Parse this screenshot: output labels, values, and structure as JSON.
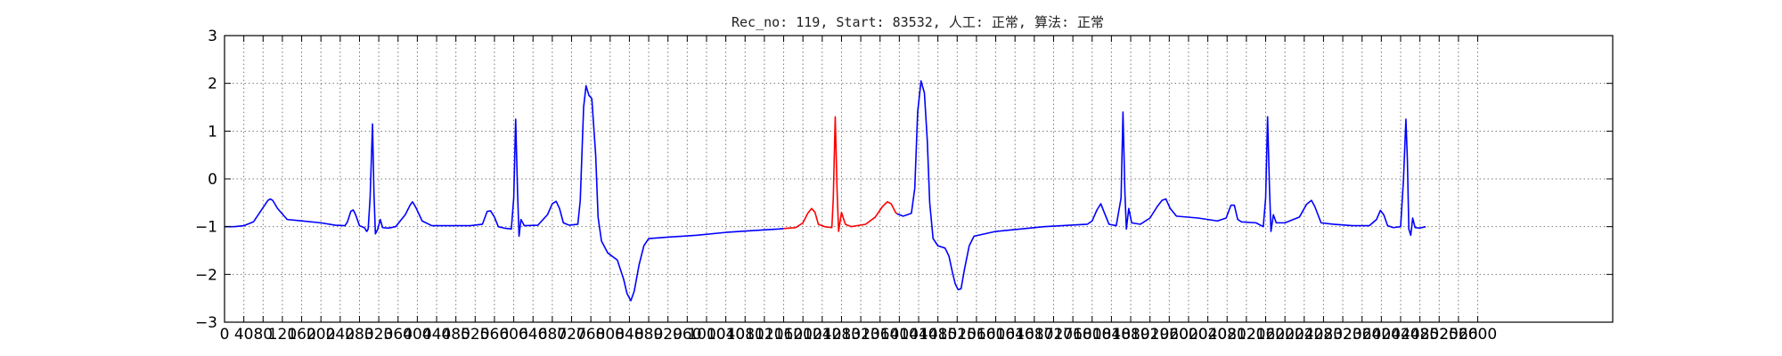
{
  "chart_data": {
    "type": "line",
    "title": "Rec_no: 119, Start: 83532, 人工: 正常, 算法: 正常",
    "xlabel": "",
    "ylabel": "",
    "xlim": [
      0,
      2880
    ],
    "ylim": [
      -3,
      3
    ],
    "grid": true,
    "legend": "none",
    "xticks": [
      0,
      40,
      80,
      120,
      160,
      200,
      240,
      280,
      320,
      360,
      400,
      440,
      480,
      520,
      560,
      600,
      640,
      680,
      720,
      760,
      800,
      840,
      880,
      920,
      960,
      1000,
      1040,
      1080,
      1120,
      1160,
      1200,
      1240,
      1280,
      1320,
      1360,
      1400,
      1440,
      1480,
      1520,
      1560,
      1600,
      1640,
      1680,
      1720,
      1760,
      1800,
      1840,
      1880,
      1920,
      1960,
      2000,
      2040,
      2080,
      2120,
      2160,
      2200,
      2240,
      2280,
      2320,
      2360,
      2400,
      2440,
      2480,
      2520,
      2560,
      2600
    ],
    "xtick_labels": [
      "0",
      "40",
      "80",
      "120",
      "160",
      "200",
      "240",
      "280",
      "320",
      "360",
      "400",
      "440",
      "480",
      "520",
      "560",
      "600",
      "640",
      "680",
      "720",
      "760",
      "800",
      "840",
      "880",
      "920",
      "960",
      "1000",
      "1040",
      "1080",
      "1120",
      "1160",
      "1200",
      "1240",
      "1280",
      "1320",
      "1360",
      "1400",
      "1440",
      "1480",
      "1520",
      "1560",
      "1600",
      "1640",
      "1680",
      "1720",
      "1760",
      "1800",
      "1840",
      "1880",
      "1920",
      "1960",
      "2000",
      "2040",
      "2080",
      "2120",
      "2160",
      "2200",
      "2240",
      "2280",
      "2320",
      "2360",
      "2400",
      "2440",
      "2480",
      "2520",
      "2560",
      "2600"
    ],
    "yticks": [
      -3,
      -2,
      -1,
      0,
      1,
      2,
      3
    ],
    "ytick_labels": [
      "−3",
      "−2",
      "−1",
      "0",
      "1",
      "2",
      "3"
    ],
    "series": [
      {
        "color": "#0000ff",
        "points": [
          [
            0,
            -1.0
          ],
          [
            20,
            -1.0
          ],
          [
            40,
            -0.98
          ],
          [
            60,
            -0.9
          ],
          [
            80,
            -0.6
          ],
          [
            90,
            -0.45
          ],
          [
            95,
            -0.42
          ],
          [
            100,
            -0.45
          ],
          [
            110,
            -0.62
          ],
          [
            130,
            -0.85
          ],
          [
            160,
            -0.88
          ],
          [
            200,
            -0.92
          ],
          [
            230,
            -0.97
          ],
          [
            250,
            -0.98
          ],
          [
            255,
            -0.9
          ],
          [
            262,
            -0.68
          ],
          [
            267,
            -0.65
          ],
          [
            272,
            -0.75
          ],
          [
            280,
            -0.98
          ],
          [
            290,
            -1.02
          ],
          [
            295,
            -1.1
          ],
          [
            298,
            -1.05
          ],
          [
            302,
            -0.4
          ],
          [
            307,
            1.15
          ],
          [
            310,
            -0.3
          ],
          [
            313,
            -1.15
          ],
          [
            318,
            -1.05
          ],
          [
            323,
            -0.85
          ],
          [
            328,
            -1.02
          ],
          [
            340,
            -1.03
          ],
          [
            355,
            -1.0
          ],
          [
            375,
            -0.75
          ],
          [
            385,
            -0.55
          ],
          [
            390,
            -0.48
          ],
          [
            397,
            -0.6
          ],
          [
            410,
            -0.88
          ],
          [
            430,
            -0.98
          ],
          [
            470,
            -0.98
          ],
          [
            510,
            -0.98
          ],
          [
            535,
            -0.95
          ],
          [
            545,
            -0.68
          ],
          [
            552,
            -0.67
          ],
          [
            560,
            -0.8
          ],
          [
            568,
            -1.0
          ],
          [
            580,
            -1.03
          ],
          [
            595,
            -1.05
          ],
          [
            600,
            -0.4
          ],
          [
            604,
            1.25
          ],
          [
            608,
            -0.3
          ],
          [
            611,
            -1.2
          ],
          [
            615,
            -0.85
          ],
          [
            622,
            -0.98
          ],
          [
            650,
            -0.97
          ],
          [
            670,
            -0.75
          ],
          [
            680,
            -0.52
          ],
          [
            688,
            -0.47
          ],
          [
            695,
            -0.62
          ],
          [
            703,
            -0.92
          ],
          [
            715,
            -0.97
          ],
          [
            733,
            -0.95
          ],
          [
            738,
            -0.45
          ],
          [
            745,
            1.5
          ],
          [
            750,
            1.95
          ],
          [
            756,
            1.75
          ],
          [
            762,
            1.68
          ],
          [
            770,
            0.5
          ],
          [
            775,
            -0.8
          ],
          [
            782,
            -1.3
          ],
          [
            795,
            -1.55
          ],
          [
            815,
            -1.7
          ],
          [
            828,
            -2.1
          ],
          [
            835,
            -2.4
          ],
          [
            843,
            -2.55
          ],
          [
            850,
            -2.35
          ],
          [
            860,
            -1.8
          ],
          [
            870,
            -1.4
          ],
          [
            880,
            -1.25
          ],
          [
            920,
            -1.22
          ],
          [
            980,
            -1.18
          ],
          [
            1040,
            -1.12
          ],
          [
            1100,
            -1.08
          ],
          [
            1150,
            -1.05
          ],
          [
            1160,
            -1.04
          ]
        ]
      },
      {
        "color": "#ff0000",
        "points": [
          [
            1160,
            -1.04
          ],
          [
            1185,
            -1.02
          ],
          [
            1200,
            -0.92
          ],
          [
            1210,
            -0.72
          ],
          [
            1218,
            -0.62
          ],
          [
            1225,
            -0.7
          ],
          [
            1232,
            -0.95
          ],
          [
            1245,
            -1.0
          ],
          [
            1260,
            -1.02
          ],
          [
            1263,
            -0.4
          ],
          [
            1267,
            1.3
          ],
          [
            1271,
            -0.3
          ],
          [
            1274,
            -1.1
          ],
          [
            1280,
            -0.7
          ],
          [
            1288,
            -0.95
          ],
          [
            1300,
            -1.0
          ],
          [
            1330,
            -0.95
          ],
          [
            1350,
            -0.8
          ],
          [
            1365,
            -0.58
          ],
          [
            1375,
            -0.48
          ],
          [
            1383,
            -0.52
          ],
          [
            1392,
            -0.7
          ],
          [
            1395,
            -0.73
          ]
        ]
      },
      {
        "color": "#0000ff",
        "points": [
          [
            1395,
            -0.73
          ],
          [
            1408,
            -0.78
          ],
          [
            1425,
            -0.72
          ],
          [
            1432,
            -0.2
          ],
          [
            1438,
            1.4
          ],
          [
            1445,
            2.05
          ],
          [
            1452,
            1.8
          ],
          [
            1458,
            0.8
          ],
          [
            1463,
            -0.5
          ],
          [
            1470,
            -1.25
          ],
          [
            1480,
            -1.4
          ],
          [
            1495,
            -1.45
          ],
          [
            1503,
            -1.62
          ],
          [
            1510,
            -1.95
          ],
          [
            1516,
            -2.2
          ],
          [
            1522,
            -2.32
          ],
          [
            1528,
            -2.3
          ],
          [
            1535,
            -1.9
          ],
          [
            1545,
            -1.4
          ],
          [
            1555,
            -1.2
          ],
          [
            1600,
            -1.1
          ],
          [
            1700,
            -1.0
          ],
          [
            1790,
            -0.95
          ],
          [
            1800,
            -0.88
          ],
          [
            1810,
            -0.65
          ],
          [
            1818,
            -0.52
          ],
          [
            1825,
            -0.7
          ],
          [
            1835,
            -0.95
          ],
          [
            1850,
            -0.98
          ],
          [
            1860,
            -0.4
          ],
          [
            1864,
            1.4
          ],
          [
            1868,
            -0.3
          ],
          [
            1871,
            -1.05
          ],
          [
            1876,
            -0.62
          ],
          [
            1882,
            -0.92
          ],
          [
            1900,
            -0.95
          ],
          [
            1920,
            -0.82
          ],
          [
            1935,
            -0.58
          ],
          [
            1945,
            -0.45
          ],
          [
            1953,
            -0.42
          ],
          [
            1962,
            -0.62
          ],
          [
            1975,
            -0.78
          ],
          [
            2020,
            -0.82
          ],
          [
            2060,
            -0.88
          ],
          [
            2078,
            -0.82
          ],
          [
            2088,
            -0.55
          ],
          [
            2095,
            -0.55
          ],
          [
            2102,
            -0.85
          ],
          [
            2110,
            -0.9
          ],
          [
            2140,
            -0.92
          ],
          [
            2155,
            -1.0
          ],
          [
            2160,
            -0.4
          ],
          [
            2164,
            1.3
          ],
          [
            2168,
            -0.2
          ],
          [
            2171,
            -1.1
          ],
          [
            2176,
            -0.75
          ],
          [
            2182,
            -0.92
          ],
          [
            2200,
            -0.92
          ],
          [
            2230,
            -0.8
          ],
          [
            2245,
            -0.53
          ],
          [
            2255,
            -0.45
          ],
          [
            2262,
            -0.58
          ],
          [
            2275,
            -0.92
          ],
          [
            2300,
            -0.95
          ],
          [
            2340,
            -0.98
          ],
          [
            2375,
            -0.98
          ],
          [
            2390,
            -0.85
          ],
          [
            2398,
            -0.66
          ],
          [
            2405,
            -0.75
          ],
          [
            2413,
            -0.98
          ],
          [
            2425,
            -1.02
          ],
          [
            2440,
            -1.0
          ],
          [
            2446,
            0.0
          ],
          [
            2451,
            1.25
          ],
          [
            2454,
            0.4
          ],
          [
            2457,
            -1.05
          ],
          [
            2461,
            -1.18
          ],
          [
            2465,
            -0.82
          ],
          [
            2470,
            -1.02
          ],
          [
            2480,
            -1.03
          ],
          [
            2492,
            -1.0
          ]
        ]
      }
    ]
  }
}
